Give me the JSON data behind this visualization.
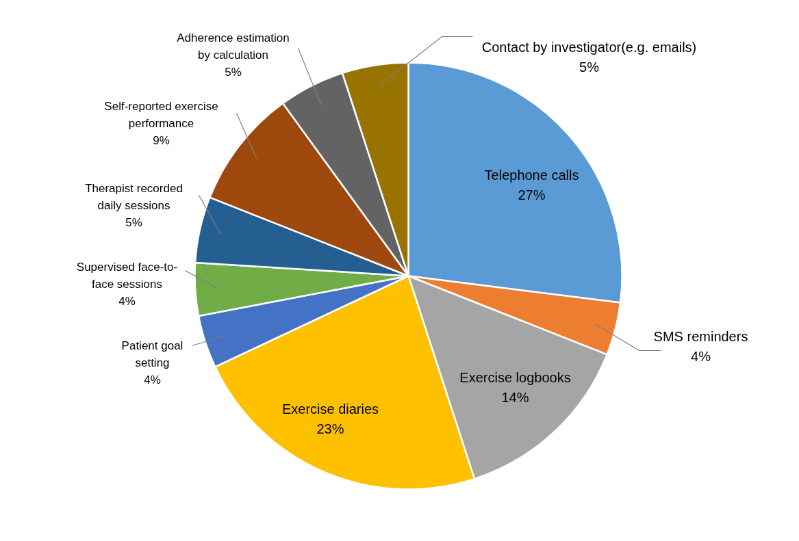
{
  "chart_data": {
    "type": "pie",
    "categories": [
      "Telephone calls",
      "SMS reminders",
      "Exercise logbooks",
      "Exercise diaries",
      "Patient goal\nsetting",
      "Supervised face-to-\nface sessions",
      "Therapist recorded\ndaily sessions",
      "Self-reported exercise\nperformance",
      "Adherence estimation\nby calculation",
      "Contact by investigator(e.g. emails)"
    ],
    "values": [
      27,
      4,
      14,
      23,
      4,
      4,
      5,
      9,
      5,
      5
    ],
    "value_labels": [
      "27%",
      "4%",
      "14%",
      "23%",
      "4%",
      "4%",
      "5%",
      "9%",
      "5%",
      "5%"
    ],
    "colors": [
      "#5b9bd5",
      "#ed7d31",
      "#a5a5a5",
      "#ffc000",
      "#4472c4",
      "#70ad47",
      "#255e91",
      "#9e480e",
      "#636363",
      "#997300"
    ]
  }
}
